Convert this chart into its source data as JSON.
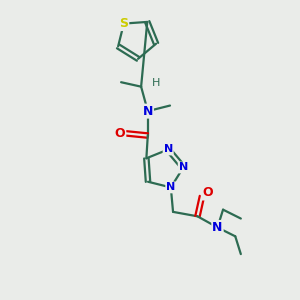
{
  "background_color": "#eaece9",
  "atom_colors": {
    "S": "#cccc00",
    "N": "#0000dd",
    "O": "#dd0000",
    "C": "#2d6b52",
    "H": "#2d6b52"
  },
  "fig_size": [
    3.0,
    3.0
  ],
  "dpi": 100
}
